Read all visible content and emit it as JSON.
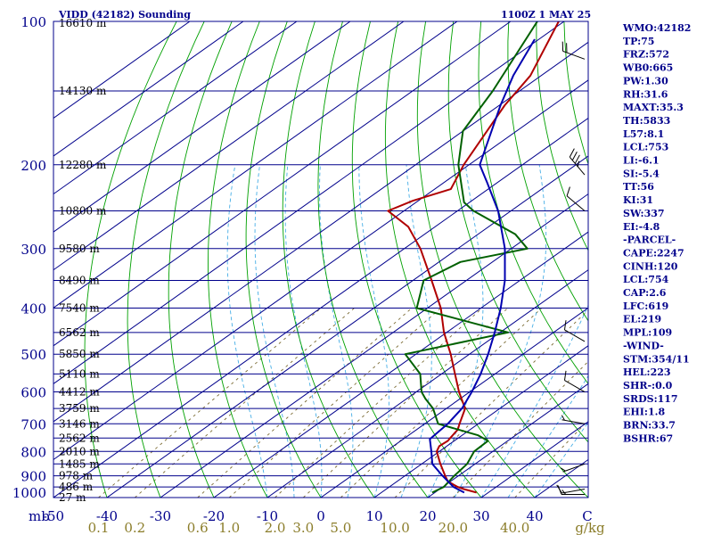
{
  "header": {
    "station": "VIDD (42182) Sounding",
    "time": "1100Z  1 MAY 25"
  },
  "colors": {
    "isobar": "#00008b",
    "isotherm": "#00008b",
    "dry_adiabat": "#00a000",
    "moist_adiabat": "#46aee6",
    "mixing_ratio": "#7a6a32",
    "temperature": "#b00000",
    "dewpoint": "#006000",
    "parcel": "#0000b0",
    "index_text": "#00008b",
    "wind": "#000000"
  },
  "chart_data": {
    "type": "line",
    "title": "VIDD (42182) Sounding",
    "y_axis": {
      "quantity": "pressure",
      "unit": "mb",
      "scale": "log",
      "range": [
        1000,
        100
      ],
      "ticks": [
        100,
        200,
        300,
        400,
        500,
        600,
        700,
        800,
        900,
        1000
      ],
      "tick_labels": [
        "100",
        "200",
        "300",
        "400",
        "500",
        "600",
        "700",
        "800",
        "900",
        "1000"
      ]
    },
    "x_axis": {
      "quantity": "temperature",
      "unit": "C",
      "skewed": true,
      "range_at_1000mb": [
        -50,
        50
      ],
      "ticks": [
        -50,
        -40,
        -30,
        -20,
        -10,
        0,
        10,
        20,
        30,
        40
      ],
      "tick_labels": [
        "-50",
        "-40",
        "-30",
        "-20",
        "-10",
        "0",
        "10",
        "20",
        "30",
        "40"
      ],
      "unit_label": "C",
      "pressure_unit_label": "mb"
    },
    "mixing_ratio_axis": {
      "unit": "g/kg",
      "values": [
        0.1,
        0.2,
        0.6,
        1.0,
        2.0,
        3.0,
        5.0,
        10.0,
        20.0,
        40.0
      ],
      "labels": [
        "0.1",
        "0.2",
        "0.6",
        "1.0",
        "2.0",
        "3.0",
        "5.0",
        "10.0",
        "20.0",
        "40.0"
      ]
    },
    "height_labels": [
      {
        "p": 100,
        "label": "16610 m"
      },
      {
        "p": 140,
        "label": "14130 m"
      },
      {
        "p": 200,
        "label": "12280 m"
      },
      {
        "p": 250,
        "label": "10800 m"
      },
      {
        "p": 300,
        "label": "9580 m"
      },
      {
        "p": 350,
        "label": "8490 m"
      },
      {
        "p": 400,
        "label": "7540 m"
      },
      {
        "p": 450,
        "label": "6562 m"
      },
      {
        "p": 500,
        "label": "5850 m"
      },
      {
        "p": 550,
        "label": "5110 m"
      },
      {
        "p": 600,
        "label": "4412 m"
      },
      {
        "p": 650,
        "label": "3759 m"
      },
      {
        "p": 700,
        "label": "3146 m"
      },
      {
        "p": 750,
        "label": "2562 m"
      },
      {
        "p": 800,
        "label": "2010 m"
      },
      {
        "p": 850,
        "label": "1485 m"
      },
      {
        "p": 900,
        "label": "978 m"
      },
      {
        "p": 950,
        "label": "486 m"
      },
      {
        "p": 1000,
        "label": "27 m"
      }
    ],
    "grid_isobars": [
      100,
      140,
      200,
      250,
      300,
      350,
      400,
      450,
      500,
      550,
      600,
      650,
      700,
      750,
      800,
      850,
      900,
      950,
      1000
    ],
    "series": [
      {
        "name": "Temperature",
        "key": "temperature",
        "points": [
          [
            976,
            27.8
          ],
          [
            960,
            24.5
          ],
          [
            950,
            22.8
          ],
          [
            925,
            19.5
          ],
          [
            900,
            17.5
          ],
          [
            850,
            13.5
          ],
          [
            800,
            9.5
          ],
          [
            780,
            8.6
          ],
          [
            760,
            8.8
          ],
          [
            750,
            8.5
          ],
          [
            720,
            7.7
          ],
          [
            700,
            6.5
          ],
          [
            650,
            3.5
          ],
          [
            600,
            -2.0
          ],
          [
            550,
            -7.5
          ],
          [
            500,
            -13.5
          ],
          [
            450,
            -20.5
          ],
          [
            400,
            -27.5
          ],
          [
            350,
            -36.5
          ],
          [
            300,
            -47.0
          ],
          [
            270,
            -55.0
          ],
          [
            250,
            -63.0
          ],
          [
            238,
            -61.0
          ],
          [
            225,
            -57.0
          ],
          [
            200,
            -61.0
          ],
          [
            150,
            -69.0
          ],
          [
            130,
            -72.0
          ],
          [
            100,
            -81.0
          ]
        ]
      },
      {
        "name": "Dewpoint",
        "key": "dewpoint",
        "points": [
          [
            976,
            19.5
          ],
          [
            950,
            20.2
          ],
          [
            900,
            19.2
          ],
          [
            850,
            18.5
          ],
          [
            800,
            16.5
          ],
          [
            760,
            16.3
          ],
          [
            740,
            13.0
          ],
          [
            700,
            2.5
          ],
          [
            650,
            -2.5
          ],
          [
            620,
            -6.5
          ],
          [
            600,
            -9.0
          ],
          [
            550,
            -14.0
          ],
          [
            500,
            -22.0
          ],
          [
            450,
            -8.5
          ],
          [
            400,
            -32.0
          ],
          [
            350,
            -38.0
          ],
          [
            320,
            -36.0
          ],
          [
            300,
            -27.0
          ],
          [
            280,
            -33.0
          ],
          [
            250,
            -47.0
          ],
          [
            240,
            -51.0
          ],
          [
            200,
            -62.0
          ],
          [
            170,
            -70.0
          ],
          [
            140,
            -75.0
          ],
          [
            100,
            -85.0
          ]
        ]
      },
      {
        "name": "Parcel",
        "key": "parcel",
        "points": [
          [
            976,
            25.5
          ],
          [
            950,
            22.0
          ],
          [
            900,
            17.0
          ],
          [
            850,
            12.0
          ],
          [
            800,
            8.5
          ],
          [
            754,
            5.0
          ],
          [
            700,
            4.3
          ],
          [
            650,
            2.9
          ],
          [
            600,
            0.4
          ],
          [
            550,
            -2.7
          ],
          [
            500,
            -6.5
          ],
          [
            450,
            -11.0
          ],
          [
            400,
            -16.3
          ],
          [
            350,
            -22.8
          ],
          [
            300,
            -31.2
          ],
          [
            250,
            -42.4
          ],
          [
            219,
            -51.6
          ],
          [
            200,
            -58.0
          ],
          [
            150,
            -69.8
          ],
          [
            130,
            -75.2
          ],
          [
            109,
            -80.8
          ]
        ]
      }
    ]
  },
  "indices": [
    "WMO:42182",
    "TP:75",
    "FRZ:572",
    "WB0:665",
    "PW:1.30",
    "RH:31.6",
    "MAXT:35.3",
    "TH:5833",
    "L57:8.1",
    "LCL:753",
    "LI:-6.1",
    "SI:-5.4",
    "TT:56",
    "KI:31",
    "SW:337",
    "EI:-4.8",
    "-PARCEL-",
    "CAPE:2247",
    "CINH:120",
    "LCL:754",
    "CAP:2.6",
    "LFC:619",
    "EL:219",
    "MPL:109",
    "-WIND-",
    "STM:354/11",
    "HEL:223",
    "SHR-:0.0",
    "SRDS:117",
    "EHI:1.8",
    "BRN:33.7",
    "BSHR:67"
  ],
  "winds": [
    {
      "p": 985,
      "dir": 270,
      "kt": 15
    },
    {
      "p": 960,
      "dir": 260,
      "kt": 10
    },
    {
      "p": 850,
      "dir": 250,
      "kt": 5
    },
    {
      "p": 700,
      "dir": 280,
      "kt": 5
    },
    {
      "p": 600,
      "dir": 300,
      "kt": 10
    },
    {
      "p": 470,
      "dir": 300,
      "kt": 10
    },
    {
      "p": 250,
      "dir": 310,
      "kt": 10
    },
    {
      "p": 210,
      "dir": 320,
      "kt": 35
    },
    {
      "p": 120,
      "dir": 290,
      "kt": 20
    }
  ]
}
